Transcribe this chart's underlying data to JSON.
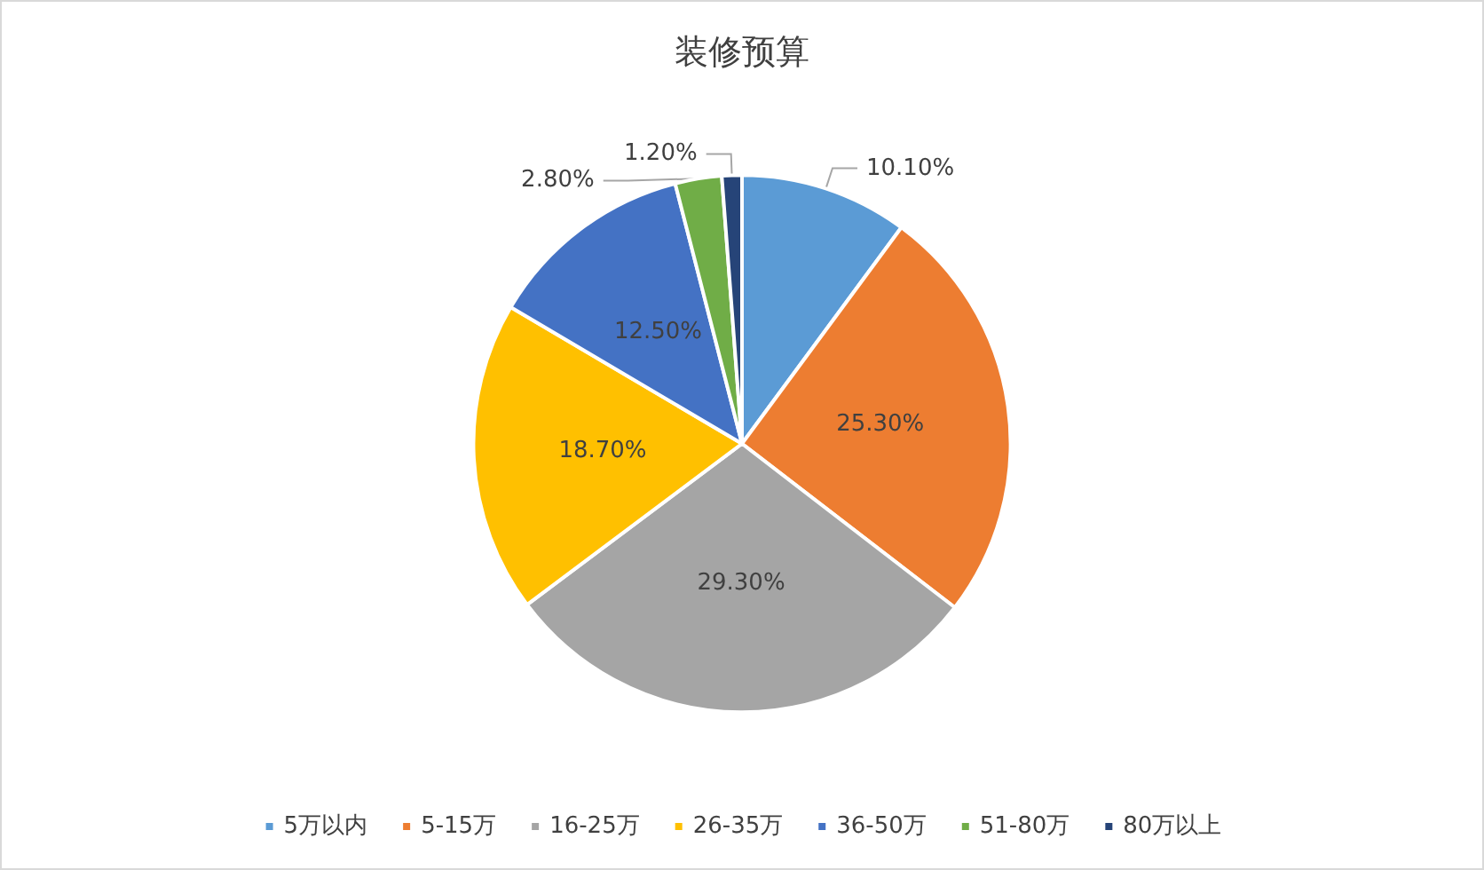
{
  "chart_data": {
    "type": "pie",
    "title": "装修预算",
    "categories": [
      "5万以内",
      "5-15万",
      "16-25万",
      "26-35万",
      "36-50万",
      "51-80万",
      "80万以上"
    ],
    "values": [
      10.1,
      25.3,
      29.3,
      18.7,
      12.5,
      2.8,
      1.2
    ],
    "colors": [
      "#5b9bd5",
      "#ed7d31",
      "#a5a5a5",
      "#ffc000",
      "#4472c4",
      "#70ad47",
      "#264478"
    ],
    "value_labels": [
      "10.10%",
      "25.30%",
      "29.30%",
      "18.70%",
      "12.50%",
      "2.80%",
      "1.20%"
    ],
    "legend": "bottom"
  }
}
